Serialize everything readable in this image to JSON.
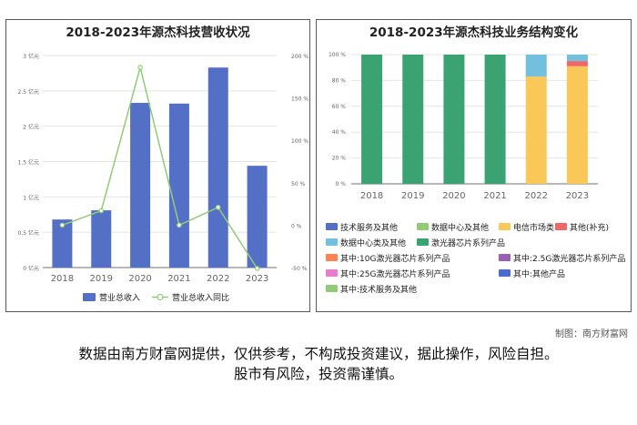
{
  "chart_data": [
    {
      "type": "bar",
      "title": "2018-2023年源杰科技营收状况",
      "categories": [
        "2018",
        "2019",
        "2020",
        "2021",
        "2022",
        "2023"
      ],
      "ylim": [
        0,
        3
      ],
      "y_ticks": [
        "0 亿元",
        "0.5 亿元",
        "1 亿元",
        "1.5 亿元",
        "2 亿元",
        "2.5 亿元",
        "3 亿元"
      ],
      "y2lim": [
        -50,
        200
      ],
      "y2_ticks": [
        "-50 %",
        "0 %",
        "50 %",
        "100 %",
        "150 %",
        "200 %"
      ],
      "series": [
        {
          "name": "营业总收入",
          "type": "bar",
          "axis": "left",
          "color": "#5470c6",
          "values": [
            0.68,
            0.81,
            2.33,
            2.32,
            2.83,
            1.44
          ]
        },
        {
          "name": "营业总收入同比",
          "type": "line",
          "axis": "right",
          "color": "#91cc75",
          "values": [
            0,
            17,
            186,
            0,
            21,
            -51
          ]
        }
      ],
      "grid": true,
      "legend": "bottom"
    },
    {
      "type": "bar",
      "stacked": true,
      "title": "2018-2023年源杰科技业务结构变化",
      "categories": [
        "2018",
        "2019",
        "2020",
        "2021",
        "2022",
        "2023"
      ],
      "ylim": [
        0,
        100
      ],
      "y_ticks": [
        "0 %",
        "20 %",
        "40 %",
        "60 %",
        "80 %",
        "100 %"
      ],
      "series": [
        {
          "name": "技术服务及其他",
          "color": "#5470c6",
          "values": [
            0,
            0,
            0,
            0,
            0,
            0
          ]
        },
        {
          "name": "数据中心及其他",
          "color": "#91cc75",
          "values": [
            0,
            0,
            0,
            0,
            0,
            0
          ]
        },
        {
          "name": "电信市场类",
          "color": "#fac858",
          "values": [
            0,
            0,
            0,
            0,
            83,
            91
          ]
        },
        {
          "name": "其他(补充)",
          "color": "#ee6666",
          "values": [
            0,
            0,
            0,
            0,
            0,
            4
          ]
        },
        {
          "name": "数据中心类及其他",
          "color": "#73c0de",
          "values": [
            0,
            0,
            0,
            0,
            17,
            5
          ]
        },
        {
          "name": "激光器芯片系列产品",
          "color": "#3ba272",
          "values": [
            100,
            100,
            100,
            100,
            0,
            0
          ]
        },
        {
          "name": "其中:10G激光器芯片系列产品",
          "color": "#fc8452",
          "values": [
            0,
            0,
            0,
            0,
            0,
            0
          ]
        },
        {
          "name": "其中:2.5G激光器芯片系列产品",
          "color": "#9a60b4",
          "values": [
            0,
            0,
            0,
            0,
            0,
            0
          ]
        },
        {
          "name": "其中:25G激光器芯片系列产品",
          "color": "#ea7ccc",
          "values": [
            0,
            0,
            0,
            0,
            0,
            0
          ]
        },
        {
          "name": "其中:其他产品",
          "color": "#4a6bd0",
          "values": [
            0,
            0,
            0,
            0,
            0,
            0
          ]
        },
        {
          "name": "其中:技术服务及其他",
          "color": "#91cc75",
          "values": [
            0,
            0,
            0,
            0,
            0,
            0
          ]
        }
      ],
      "grid": true,
      "legend": "bottom"
    }
  ],
  "footer": {
    "credit": "制图：南方财富网",
    "disclaimer_line1": "数据由南方财富网提供，仅供参考，不构成投资建议，据此操作，风险自担。",
    "disclaimer_line2": "股市有风险，投资需谨慎。"
  }
}
